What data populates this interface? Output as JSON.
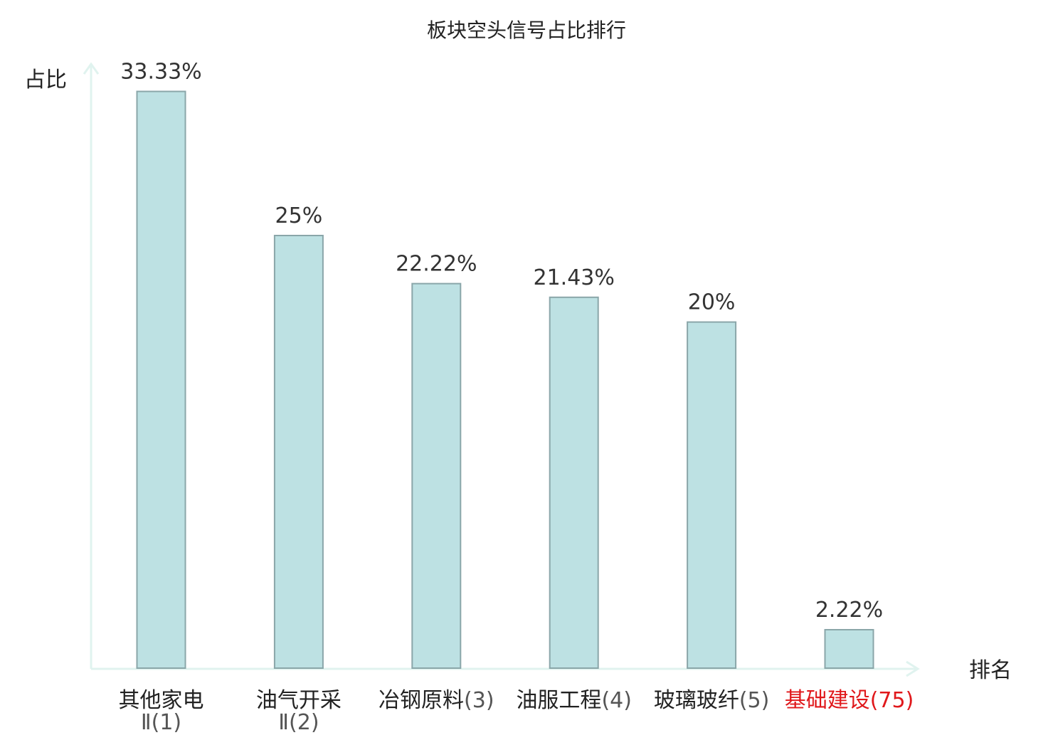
{
  "chart_data": {
    "type": "bar",
    "title": "板块空头信号占比排行",
    "ylabel": "占比",
    "xlabel": "排名",
    "ylim": [
      0,
      34.5
    ],
    "grid": false,
    "categories": [
      {
        "name": "其他家电Ⅱ",
        "rank": "(1)",
        "line1": "其他家电",
        "line2": "Ⅱ(1)",
        "highlight": false
      },
      {
        "name": "油气开采Ⅱ",
        "rank": "(2)",
        "line1": "油气开采",
        "line2": "Ⅱ(2)",
        "highlight": false
      },
      {
        "name": "冶钢原料",
        "rank": "(3)",
        "line1": "冶钢原料",
        "line1_suffix": "(3)",
        "line2": "",
        "highlight": false
      },
      {
        "name": "油服工程",
        "rank": "(4)",
        "line1": "油服工程",
        "line1_suffix": "(4)",
        "line2": "",
        "highlight": false
      },
      {
        "name": "玻璃玻纤",
        "rank": "(5)",
        "line1": "玻璃玻纤",
        "line1_suffix": "(5)",
        "line2": "",
        "highlight": false
      },
      {
        "name": "基础建设",
        "rank": "(75)",
        "line1": "基础建设",
        "line1_suffix": "(75)",
        "line2": "",
        "highlight": true
      }
    ],
    "values": [
      33.33,
      25,
      22.22,
      21.43,
      20,
      2.22
    ],
    "value_labels": [
      "33.33%",
      "25%",
      "22.22%",
      "21.43%",
      "20%",
      "2.22%"
    ],
    "colors": {
      "bar_fill": "#bde1e3",
      "bar_stroke": "#8aa6a9",
      "axis": "#e0f3ef",
      "highlight_text": "#e0181b"
    }
  }
}
